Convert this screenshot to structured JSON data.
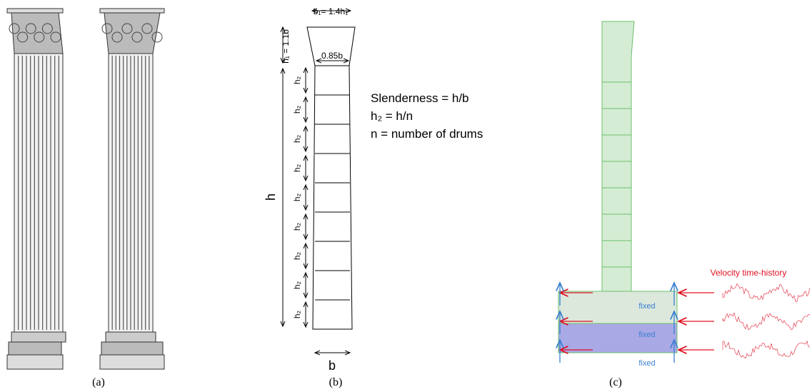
{
  "panel_a": {
    "caption": "(a)"
  },
  "panel_b": {
    "caption": "(b)",
    "top_width": "b₁= 1.4h₁",
    "neck_width": "0.85b",
    "capital_height": "h₁ = 1.1b",
    "drum_labels": [
      "h₂",
      "h₂",
      "h₂",
      "h₂",
      "h₂",
      "h₂",
      "h₂",
      "h₂",
      "h₂"
    ],
    "height": "h",
    "base_width": "b",
    "notes": [
      "Slenderness = h/b",
      "h₂ = h/n",
      "n = number of drums"
    ]
  },
  "panel_c": {
    "caption": "(c)",
    "input_label": "Velocity time-history",
    "support_labels": [
      "fixed",
      "fixed",
      "fixed"
    ]
  }
}
